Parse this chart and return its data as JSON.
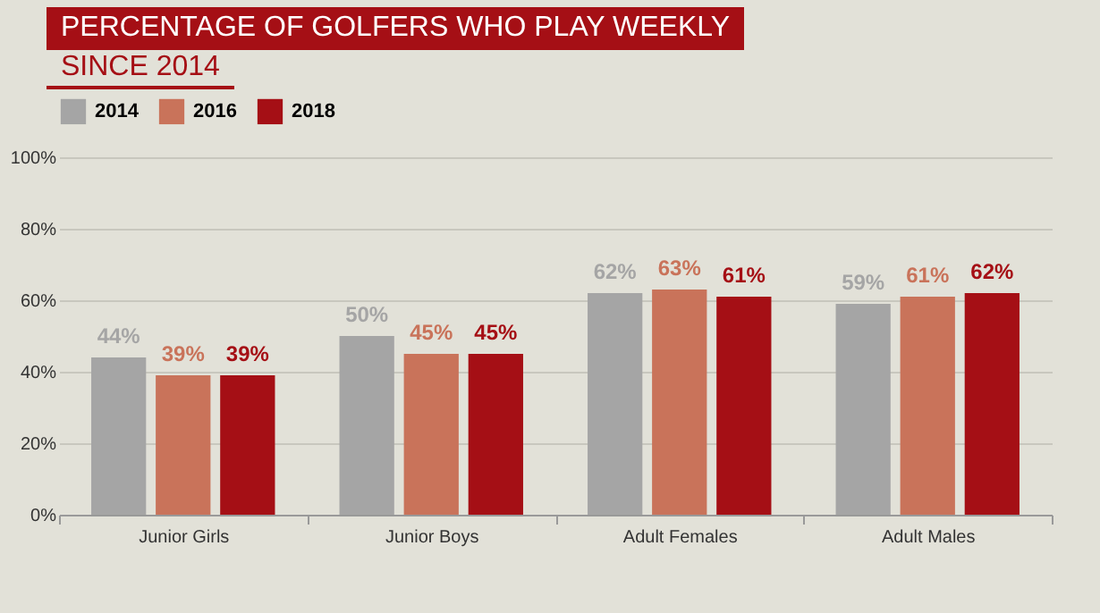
{
  "chart_data": {
    "type": "bar",
    "title": "PERCENTAGE OF GOLFERS WHO PLAY WEEKLY",
    "subtitle": "SINCE 2014",
    "categories": [
      "Junior Girls",
      "Junior Boys",
      "Adult Females",
      "Adult Males"
    ],
    "series": [
      {
        "name": "2014",
        "color": "#a5a5a5",
        "values": [
          44,
          50,
          62,
          59
        ],
        "value_labels": [
          "44%",
          "50%",
          "62%",
          "59%"
        ]
      },
      {
        "name": "2016",
        "color": "#c9735a",
        "values": [
          39,
          45,
          63,
          61
        ],
        "value_labels": [
          "39%",
          "45%",
          "63%",
          "61%"
        ]
      },
      {
        "name": "2018",
        "color": "#a50f15",
        "values": [
          39,
          45,
          61,
          62
        ],
        "value_labels": [
          "39%",
          "45%",
          "61%",
          "62%"
        ]
      }
    ],
    "ylim": [
      0,
      100
    ],
    "yticks": [
      {
        "value": 0,
        "label": "0%"
      },
      {
        "value": 20,
        "label": "20%"
      },
      {
        "value": 40,
        "label": "40%"
      },
      {
        "value": 60,
        "label": "60%"
      },
      {
        "value": 80,
        "label": "80%"
      },
      {
        "value": 100,
        "label": "100%"
      }
    ],
    "grid": "y",
    "legend": "top"
  }
}
